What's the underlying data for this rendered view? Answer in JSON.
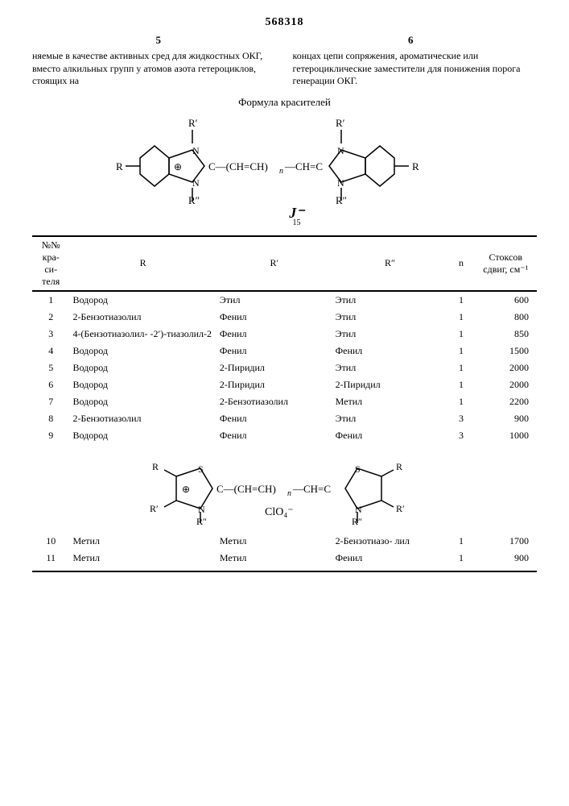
{
  "doc_number": "568318",
  "left_col_num": "5",
  "right_col_num": "6",
  "left_text": "няемые в качестве активных сред для жидкостных ОКГ, вместо алкильных групп у атомов азота гетероциклов, стоящих на",
  "right_text": "концах цепи сопряжения, ароматические или гетероциклические заместители для понижения порога генерации ОКГ.",
  "formula_title": "Формула красителей",
  "anion1": "J⁻",
  "anion_sub": "15",
  "headers": {
    "no": "№№ кра- си- теля",
    "r": "R",
    "r1": "R′",
    "r2": "R″",
    "n": "n",
    "shift": "Стоксов сдвиг, см⁻¹"
  },
  "rows1": [
    {
      "no": "1",
      "r": "Водород",
      "r1": "Этил",
      "r2": "Этил",
      "n": "1",
      "sh": "600"
    },
    {
      "no": "2",
      "r": "2-Бензотиазолил",
      "r1": "Фенил",
      "r2": "Этил",
      "n": "1",
      "sh": "800"
    },
    {
      "no": "3",
      "r": "4-(Бензотиазолил- -2′)-тиазолил-2",
      "r1": "Фенил",
      "r2": "Этил",
      "n": "1",
      "sh": "850"
    },
    {
      "no": "4",
      "r": "Водород",
      "r1": "Фенил",
      "r2": "Фенил",
      "n": "1",
      "sh": "1500"
    },
    {
      "no": "5",
      "r": "Водород",
      "r1": "2-Пиридил",
      "r2": "Этил",
      "n": "1",
      "sh": "2000"
    },
    {
      "no": "6",
      "r": "Водород",
      "r1": "2-Пиридил",
      "r2": "2-Пиридил",
      "n": "1",
      "sh": "2000"
    },
    {
      "no": "7",
      "r": "Водород",
      "r1": "2-Бензотиазолил",
      "r2": "Метил",
      "n": "1",
      "sh": "2200"
    },
    {
      "no": "8",
      "r": "2-Бензотиазолил",
      "r1": "Фенил",
      "r2": "Этил",
      "n": "3",
      "sh": "900"
    },
    {
      "no": "9",
      "r": "Водород",
      "r1": "Фенил",
      "r2": "Фенил",
      "n": "3",
      "sh": "1000"
    }
  ],
  "formula2_anion": "ClO₄⁻",
  "rows2": [
    {
      "no": "10",
      "r": "Метил",
      "r1": "Метил",
      "r2": "2-Бензотиазо- лил",
      "n": "1",
      "sh": "1700"
    },
    {
      "no": "11",
      "r": "Метил",
      "r1": "Метил",
      "r2": "Фенил",
      "n": "1",
      "sh": "900"
    }
  ]
}
